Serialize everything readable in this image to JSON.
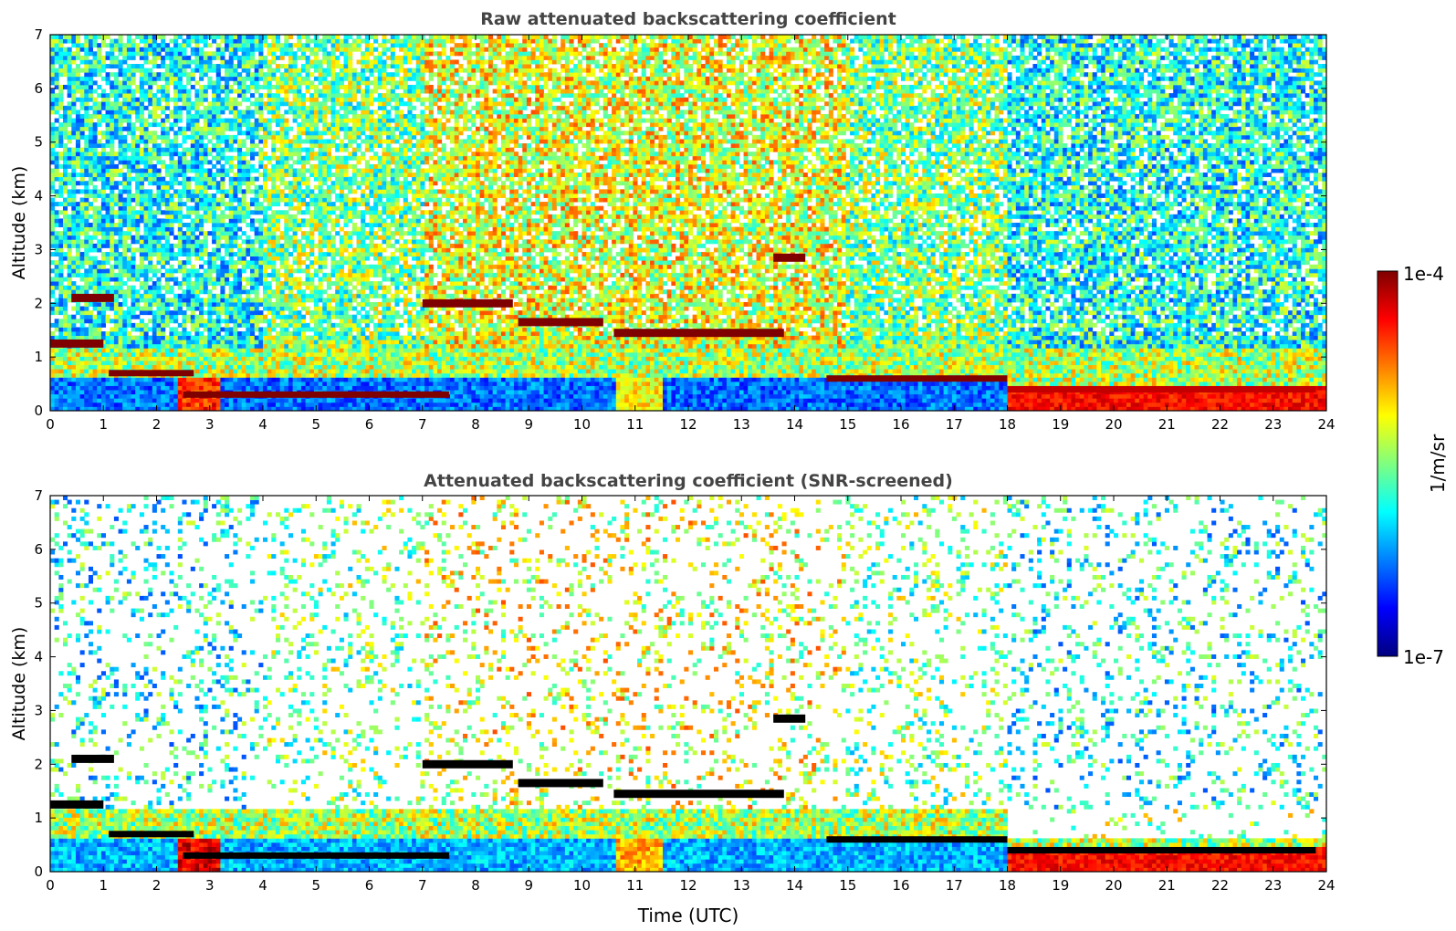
{
  "chart_data": [
    {
      "type": "heatmap",
      "title": "Raw attenuated backscattering coefficient",
      "xlabel": "",
      "ylabel": "Altitude (km)",
      "xlim": [
        0,
        24
      ],
      "ylim": [
        0,
        7
      ],
      "x_ticks": [
        "0",
        "1",
        "2",
        "3",
        "4",
        "5",
        "6",
        "7",
        "8",
        "9",
        "10",
        "11",
        "12",
        "13",
        "14",
        "15",
        "16",
        "17",
        "18",
        "19",
        "20",
        "21",
        "22",
        "23",
        "24"
      ],
      "y_ticks": [
        "0",
        "1",
        "2",
        "3",
        "4",
        "5",
        "6",
        "7"
      ],
      "screened": false,
      "features": [
        {
          "kind": "cloud",
          "x": [
            0.0,
            1.0
          ],
          "altitude_km": 1.25,
          "value_log10": -4.0
        },
        {
          "kind": "cloud",
          "x": [
            0.4,
            1.2
          ],
          "altitude_km": 2.1,
          "value_log10": -4.0
        },
        {
          "kind": "cloud",
          "x": [
            7.0,
            8.7
          ],
          "altitude_km": 2.0,
          "value_log10": -4.0
        },
        {
          "kind": "cloud",
          "x": [
            8.8,
            10.4
          ],
          "altitude_km": 1.65,
          "value_log10": -4.0
        },
        {
          "kind": "cloud",
          "x": [
            10.6,
            13.8
          ],
          "altitude_km": 1.45,
          "value_log10": -4.0
        },
        {
          "kind": "cloud",
          "x": [
            13.6,
            14.2
          ],
          "altitude_km": 2.85,
          "value_log10": -4.0
        },
        {
          "kind": "boundary_layer_top",
          "x": [
            1.1,
            2.7
          ],
          "altitude_km": 0.7,
          "value_log10": -4.0
        },
        {
          "kind": "boundary_layer_top",
          "x": [
            2.5,
            7.5
          ],
          "altitude_km": 0.3,
          "value_log10": -4.0
        },
        {
          "kind": "boundary_layer_top",
          "x": [
            14.6,
            18.0
          ],
          "altitude_km": 0.6,
          "value_log10": -4.0
        },
        {
          "kind": "boundary_layer_top",
          "x": [
            18.0,
            23.8
          ],
          "altitude_km": 0.4,
          "value_log10": -4.2
        }
      ]
    },
    {
      "type": "heatmap",
      "title": "Attenuated backscattering coefficient (SNR-screened)",
      "xlabel": "Time (UTC)",
      "ylabel": "Altitude (km)",
      "xlim": [
        0,
        24
      ],
      "ylim": [
        0,
        7
      ],
      "x_ticks": [
        "0",
        "1",
        "2",
        "3",
        "4",
        "5",
        "6",
        "7",
        "8",
        "9",
        "10",
        "11",
        "12",
        "13",
        "14",
        "15",
        "16",
        "17",
        "18",
        "19",
        "20",
        "21",
        "22",
        "23",
        "24"
      ],
      "y_ticks": [
        "0",
        "1",
        "2",
        "3",
        "4",
        "5",
        "6",
        "7"
      ],
      "screened": true,
      "features": [
        {
          "kind": "cloud",
          "x": [
            0.0,
            1.0
          ],
          "altitude_km": 1.25,
          "value_log10": -3.9
        },
        {
          "kind": "cloud",
          "x": [
            0.4,
            1.2
          ],
          "altitude_km": 2.1,
          "value_log10": -3.9
        },
        {
          "kind": "cloud",
          "x": [
            7.0,
            8.7
          ],
          "altitude_km": 2.0,
          "value_log10": -3.9
        },
        {
          "kind": "cloud",
          "x": [
            8.8,
            10.4
          ],
          "altitude_km": 1.65,
          "value_log10": -3.9
        },
        {
          "kind": "cloud",
          "x": [
            10.6,
            13.8
          ],
          "altitude_km": 1.45,
          "value_log10": -3.9
        },
        {
          "kind": "cloud",
          "x": [
            13.6,
            14.2
          ],
          "altitude_km": 2.85,
          "value_log10": -3.9
        },
        {
          "kind": "boundary_layer_top",
          "x": [
            1.1,
            2.7
          ],
          "altitude_km": 0.7,
          "value_log10": -3.9
        },
        {
          "kind": "boundary_layer_top",
          "x": [
            2.5,
            7.5
          ],
          "altitude_km": 0.3,
          "value_log10": -3.9
        },
        {
          "kind": "boundary_layer_top",
          "x": [
            14.6,
            18.0
          ],
          "altitude_km": 0.6,
          "value_log10": -3.9
        },
        {
          "kind": "boundary_layer_top",
          "x": [
            18.0,
            23.8
          ],
          "altitude_km": 0.4,
          "value_log10": -3.9
        }
      ]
    }
  ],
  "colorbar": {
    "label": "1/m/sr",
    "min_label": "1e-7",
    "max_label": "1e-4",
    "scale": "log",
    "colormap": "jet",
    "colors": [
      "#00007f",
      "#0000ff",
      "#007fff",
      "#00ffff",
      "#7fff7f",
      "#ffff00",
      "#ff7f00",
      "#ff0000",
      "#7f0000"
    ],
    "range_log10": [
      -7,
      -4
    ]
  }
}
